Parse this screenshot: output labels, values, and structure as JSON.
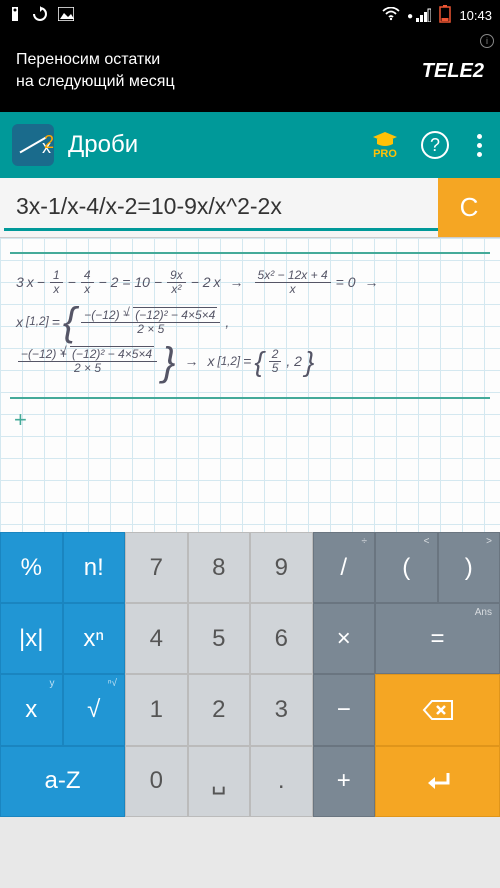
{
  "status_bar": {
    "time": "10:43",
    "battery_low": true
  },
  "ad": {
    "line1": "Переносим остатки",
    "line2": "на следующий месяц",
    "brand": "TELE2"
  },
  "app_bar": {
    "title": "Дроби",
    "pro_label": "PRO"
  },
  "input": {
    "expression": "3x-1/x-4/x-2=10-9x/x^2-2x",
    "clear_label": "C"
  },
  "solution": {
    "result_set": "{2/5, 2}"
  },
  "keyboard": {
    "rows": [
      [
        {
          "label": "%",
          "cls": "blue",
          "name": "key-percent",
          "sup": ""
        },
        {
          "label": "n!",
          "cls": "blue",
          "name": "key-factorial",
          "sup": ""
        },
        {
          "label": "7",
          "cls": "gray",
          "name": "key-7",
          "sup": ""
        },
        {
          "label": "8",
          "cls": "gray",
          "name": "key-8",
          "sup": ""
        },
        {
          "label": "9",
          "cls": "gray",
          "name": "key-9",
          "sup": ""
        },
        {
          "label": "/",
          "cls": "dgray",
          "name": "key-divide",
          "sup": "÷"
        },
        {
          "label": "(",
          "cls": "dgray",
          "name": "key-lparen",
          "sup": "<"
        },
        {
          "label": ")",
          "cls": "dgray",
          "name": "key-rparen",
          "sup": ">"
        }
      ],
      [
        {
          "label": "|x|",
          "cls": "blue",
          "name": "key-abs",
          "sup": ""
        },
        {
          "label": "xⁿ",
          "cls": "blue",
          "name": "key-power",
          "sup": ""
        },
        {
          "label": "4",
          "cls": "gray",
          "name": "key-4",
          "sup": ""
        },
        {
          "label": "5",
          "cls": "gray",
          "name": "key-5",
          "sup": ""
        },
        {
          "label": "6",
          "cls": "gray",
          "name": "key-6",
          "sup": ""
        },
        {
          "label": "×",
          "cls": "dgray",
          "name": "key-multiply",
          "sup": ""
        },
        {
          "label": "=",
          "cls": "dgray",
          "name": "key-equals",
          "sup": "Ans",
          "span": 2
        }
      ],
      [
        {
          "label": "x",
          "cls": "blue",
          "name": "key-x",
          "sup": "y"
        },
        {
          "label": "√",
          "cls": "blue",
          "name": "key-sqrt",
          "sup": "ⁿ√"
        },
        {
          "label": "1",
          "cls": "gray",
          "name": "key-1",
          "sup": ""
        },
        {
          "label": "2",
          "cls": "gray",
          "name": "key-2",
          "sup": ""
        },
        {
          "label": "3",
          "cls": "gray",
          "name": "key-3",
          "sup": ""
        },
        {
          "label": "−",
          "cls": "dgray",
          "name": "key-minus",
          "sup": ""
        },
        {
          "label": "⌫",
          "cls": "orange",
          "name": "key-backspace",
          "sup": "",
          "span": 2,
          "icon": "backspace"
        }
      ],
      [
        {
          "label": "a-Z",
          "cls": "blue",
          "name": "key-alpha",
          "sup": "",
          "span": 2
        },
        {
          "label": "0",
          "cls": "gray",
          "name": "key-0",
          "sup": ""
        },
        {
          "label": "␣",
          "cls": "gray",
          "name": "key-space",
          "sup": ""
        },
        {
          "label": ".",
          "cls": "gray",
          "name": "key-dot",
          "sup": ""
        },
        {
          "label": "+",
          "cls": "dgray",
          "name": "key-plus",
          "sup": ""
        },
        {
          "label": "↵",
          "cls": "orange",
          "name": "key-enter",
          "sup": "",
          "span": 2,
          "icon": "enter"
        }
      ]
    ]
  },
  "colors": {
    "teal": "#009999",
    "orange": "#f5a623",
    "key_blue": "#2196d4",
    "key_gray": "#d0d4d8",
    "key_dgray": "#7b8894"
  }
}
